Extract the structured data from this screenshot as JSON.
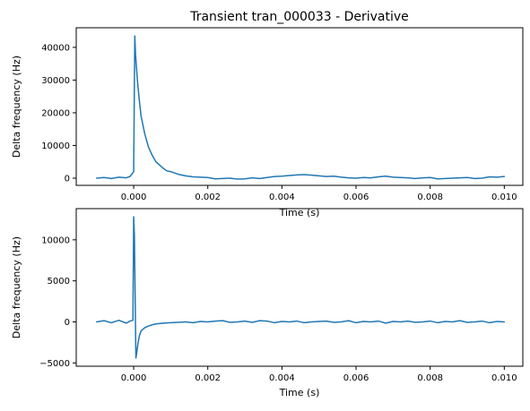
{
  "chart_data": [
    {
      "type": "line",
      "title": "Transient tran_000033 - Derivative",
      "xlabel": "Time (s)",
      "ylabel": "Delta frequency (Hz)",
      "xlim": [
        -0.00155,
        0.0105
      ],
      "ylim": [
        -2200,
        46000
      ],
      "xticks": [
        0.0,
        0.002,
        0.004,
        0.006,
        0.008,
        0.01
      ],
      "xtick_labels": [
        "0.000",
        "0.002",
        "0.004",
        "0.006",
        "0.008",
        "0.010"
      ],
      "yticks": [
        0,
        10000,
        20000,
        30000,
        40000
      ],
      "ytick_labels": [
        "0",
        "10000",
        "20000",
        "30000",
        "40000"
      ],
      "grid": false,
      "color": "#1f77b4",
      "series": [
        {
          "x": [
            -0.001,
            -0.0008,
            -0.0006,
            -0.0004,
            -0.0002,
            -0.0001,
            0.0,
            3e-05,
            5e-05,
            0.0001,
            0.00015,
            0.0002,
            0.0003,
            0.0004,
            0.0005,
            0.0006,
            0.0007,
            0.0008,
            0.0009,
            0.001,
            0.0012,
            0.0014,
            0.0016,
            0.0018,
            0.002,
            0.0022,
            0.0024,
            0.0026,
            0.0028,
            0.003,
            0.0032,
            0.0034,
            0.0036,
            0.0038,
            0.004,
            0.0042,
            0.0044,
            0.0046,
            0.0048,
            0.005,
            0.0052,
            0.0054,
            0.0056,
            0.0058,
            0.006,
            0.0062,
            0.0064,
            0.0066,
            0.0068,
            0.007,
            0.0072,
            0.0074,
            0.0076,
            0.0078,
            0.008,
            0.0082,
            0.0084,
            0.0086,
            0.0088,
            0.009,
            0.0092,
            0.0094,
            0.0096,
            0.0098,
            0.01
          ],
          "y": [
            0,
            200,
            -100,
            300,
            100,
            500,
            2000,
            43500,
            38000,
            30000,
            24000,
            19000,
            13500,
            9500,
            7000,
            5000,
            4000,
            3000,
            2200,
            2000,
            1200,
            700,
            400,
            300,
            200,
            -200,
            -100,
            0,
            -300,
            -200,
            100,
            -100,
            200,
            500,
            600,
            800,
            1000,
            1100,
            900,
            700,
            500,
            600,
            300,
            100,
            0,
            200,
            100,
            400,
            600,
            300,
            200,
            100,
            -100,
            100,
            200,
            -200,
            -100,
            0,
            100,
            200,
            -100,
            0,
            400,
            300,
            500
          ]
        }
      ]
    },
    {
      "type": "line",
      "title": "",
      "xlabel": "Time (s)",
      "ylabel": "Delta frequency (Hz)",
      "xlim": [
        -0.00155,
        0.0105
      ],
      "ylim": [
        -5400,
        13800
      ],
      "xticks": [
        0.0,
        0.002,
        0.004,
        0.006,
        0.008,
        0.01
      ],
      "xtick_labels": [
        "0.000",
        "0.002",
        "0.004",
        "0.006",
        "0.008",
        "0.010"
      ],
      "yticks": [
        -5000,
        0,
        5000,
        10000
      ],
      "ytick_labels": [
        "−5000",
        "0",
        "5000",
        "10000"
      ],
      "grid": false,
      "color": "#1f77b4",
      "series": [
        {
          "x": [
            -0.001,
            -0.0008,
            -0.0006,
            -0.0004,
            -0.0002,
            -0.0001,
            -2e-05,
            0.0,
            2e-05,
            4e-05,
            6e-05,
            9e-05,
            0.00012,
            0.00016,
            0.0002,
            0.0003,
            0.0004,
            0.0005,
            0.0006,
            0.0008,
            0.001,
            0.0012,
            0.0014,
            0.0016,
            0.0018,
            0.002,
            0.0022,
            0.0024,
            0.0026,
            0.0028,
            0.003,
            0.0032,
            0.0034,
            0.0036,
            0.0038,
            0.004,
            0.0042,
            0.0044,
            0.0046,
            0.0048,
            0.005,
            0.0052,
            0.0054,
            0.0056,
            0.0058,
            0.006,
            0.0062,
            0.0064,
            0.0066,
            0.0068,
            0.007,
            0.0072,
            0.0074,
            0.0076,
            0.0078,
            0.008,
            0.0082,
            0.0084,
            0.0086,
            0.0088,
            0.009,
            0.0092,
            0.0094,
            0.0096,
            0.0098,
            0.01
          ],
          "y": [
            0,
            150,
            -100,
            200,
            -150,
            100,
            200,
            12800,
            10500,
            3000,
            -4400,
            -3500,
            -2500,
            -1600,
            -1100,
            -700,
            -500,
            -350,
            -250,
            -150,
            -100,
            -50,
            0,
            -100,
            50,
            0,
            100,
            150,
            -50,
            0,
            100,
            -50,
            150,
            100,
            -100,
            50,
            0,
            100,
            -100,
            0,
            50,
            100,
            -50,
            0,
            150,
            -100,
            50,
            0,
            100,
            -150,
            50,
            0,
            100,
            -50,
            0,
            100,
            -100,
            50,
            0,
            150,
            -50,
            0,
            100,
            -100,
            50,
            0
          ]
        }
      ]
    }
  ]
}
